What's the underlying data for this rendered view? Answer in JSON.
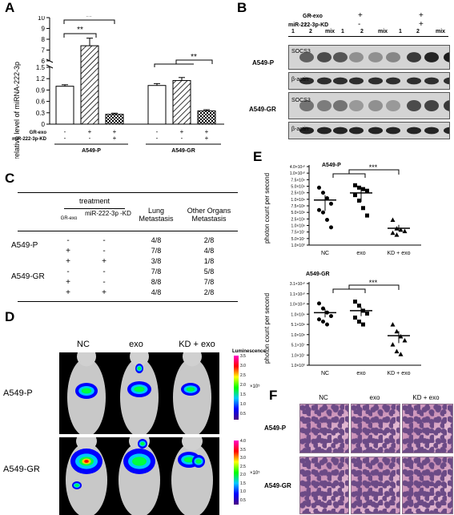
{
  "panels": {
    "A": "A",
    "B": "B",
    "C": "C",
    "D": "D",
    "E": "E",
    "F": "F"
  },
  "panelA": {
    "ylabel": "relative level of miRNA-222-3p",
    "yticks_upper": [
      "10",
      "9",
      "8",
      "7",
      "6"
    ],
    "yticks_lower": [
      "1.5",
      "1.2",
      "0.9",
      "0.6",
      "0.3",
      "0"
    ],
    "row_labels": [
      "GR-exo",
      "miR-222-3p-KD"
    ],
    "signs": {
      "A549-P": [
        [
          "-",
          "+",
          "+"
        ],
        [
          "-",
          "-",
          "+"
        ]
      ],
      "A549-GR": [
        [
          "-",
          "+",
          "+"
        ],
        [
          "-",
          "-",
          "+"
        ]
      ]
    },
    "groups": [
      "A549-P",
      "A549-GR"
    ],
    "sig": [
      "**",
      "**",
      "**"
    ]
  },
  "chart_data": [
    {
      "type": "bar",
      "title": "",
      "ylabel": "relative level of miRNA-222-3p",
      "groups": [
        "A549-P",
        "A549-GR"
      ],
      "categories": [
        "GR-exo - / miR-222-3p-KD -",
        "GR-exo + / miR-222-3p-KD -",
        "GR-exo + / miR-222-3p-KD +"
      ],
      "series": [
        {
          "name": "A549-P",
          "values": [
            1.0,
            7.4,
            0.26
          ]
        },
        {
          "name": "A549-GR",
          "values": [
            1.02,
            1.15,
            0.35
          ]
        }
      ],
      "ylim": [
        0,
        10
      ],
      "axis_break": [
        1.5,
        6
      ]
    },
    {
      "type": "scatter",
      "title": "A549-P",
      "ylabel": "photon count per second",
      "categories": [
        "NC",
        "exo",
        "KD + exo"
      ],
      "y_scale": "log",
      "ytick_labels": [
        "1.0×10⁸",
        "5.0×10⁷",
        "7.5×10⁷",
        "1.0×10⁸",
        "2.5×10⁸",
        "5.0×10⁸",
        "7.5×10⁸",
        "1.0×10⁹",
        "2.5×10⁹",
        "5.0×10⁹",
        "7.5×10⁹",
        "1.0×10¹⁰",
        "4.0×10¹⁰"
      ],
      "series": [
        {
          "name": "NC",
          "values": [
            4000000000.0,
            2500000000.0,
            1500000000.0,
            900000000.0,
            500000000.0,
            400000000.0,
            200000000.0,
            100000000.0
          ]
        },
        {
          "name": "exo",
          "values": [
            5000000000.0,
            4000000000.0,
            3500000000.0,
            3000000000.0,
            2000000000.0,
            1200000000.0,
            600000000.0,
            300000000.0
          ]
        },
        {
          "name": "KD + exo",
          "values": [
            200000000.0,
            90000000.0,
            80000000.0,
            70000000.0,
            60000000.0,
            50000000.0
          ]
        }
      ]
    },
    {
      "type": "scatter",
      "title": "A549-GR",
      "ylabel": "photon count per second",
      "categories": [
        "NC",
        "exo",
        "KD + exo"
      ],
      "y_scale": "log",
      "series": [
        {
          "name": "NC",
          "values": [
            2500000000.0,
            1500000000.0,
            1000000000.0,
            700000000.0,
            500000000.0,
            400000000.0,
            300000000.0
          ]
        },
        {
          "name": "exo",
          "values": [
            3000000000.0,
            2000000000.0,
            1200000000.0,
            900000000.0,
            600000000.0,
            400000000.0,
            300000000.0
          ]
        },
        {
          "name": "KD + exo",
          "values": [
            300000000.0,
            150000000.0,
            90000000.0,
            60000000.0,
            40000000.0,
            20000000.0,
            15000000.0
          ]
        }
      ]
    }
  ],
  "panelB": {
    "header_labels": [
      "GR-exo",
      "miR-222-3p-KD"
    ],
    "header_signs": [
      [
        "-",
        "+",
        "+"
      ],
      [
        "-",
        "-",
        "+"
      ]
    ],
    "lane_labels": [
      "1",
      "2",
      "mix",
      "1",
      "2",
      "mix",
      "1",
      "2",
      "mix"
    ],
    "cell_lines": [
      "A549-P",
      "A549-GR"
    ],
    "bands": [
      "SOCS3",
      "β-actin",
      "SOCS3",
      "β-actin"
    ]
  },
  "panelC": {
    "head_treatment": "treatment",
    "head_grexo": "GR-exo",
    "head_kd": "miR-222-3p -KD",
    "head_lung": "Lung Metastasis",
    "head_other": "Other Organs Metastasis",
    "rows": [
      {
        "group": "A549-P",
        "grexo": "-",
        "kd": "-",
        "lung": "4/8",
        "other": "2/8"
      },
      {
        "group": "",
        "grexo": "+",
        "kd": "-",
        "lung": "7/8",
        "other": "4/8"
      },
      {
        "group": "",
        "grexo": "+",
        "kd": "+",
        "lung": "3/8",
        "other": "1/8"
      },
      {
        "group": "A549-GR",
        "grexo": "-",
        "kd": "-",
        "lung": "7/8",
        "other": "5/8"
      },
      {
        "group": "",
        "grexo": "+",
        "kd": "-",
        "lung": "8/8",
        "other": "7/8"
      },
      {
        "group": "",
        "grexo": "+",
        "kd": "+",
        "lung": "4/8",
        "other": "2/8"
      }
    ]
  },
  "panelD": {
    "columns": [
      "NC",
      "exo",
      "KD + exo"
    ],
    "rows": [
      "A549-P",
      "A549-GR"
    ],
    "scale_title": "Luminescence",
    "scale1_ticks": [
      "3.5",
      "3.0",
      "2.5",
      "2.0",
      "1.5",
      "1.0",
      "0.5"
    ],
    "scale1_unit": "×10⁵",
    "scale2_ticks": [
      "4.0",
      "3.5",
      "3.0",
      "2.5",
      "2.0",
      "1.5",
      "1.0",
      "0.5"
    ],
    "scale2_unit": "×10⁵"
  },
  "panelE": {
    "title1": "A549-P",
    "title2": "A549-GR",
    "ylabel": "photon count per second",
    "ticks1": [
      "4.0×10¹⁰",
      "1.0×10¹⁰",
      "7.5×10⁹",
      "5.0×10⁹",
      "2.5×10⁹",
      "1.0×10⁹",
      "7.5×10⁸",
      "5.0×10⁸",
      "2.5×10⁸",
      "1.0×10⁸",
      "7.5×10⁷",
      "5.0×10⁷",
      "1.0×10⁰"
    ],
    "ticks2": [
      "3.1×10¹⁰",
      "1.1×10¹⁰",
      "1.0×10¹⁰",
      "1.0×10⁹",
      "5.1×10⁸",
      "1.0×10⁸",
      "5.1×10⁷",
      "1.0×10⁷",
      "1.0×10⁰"
    ],
    "xlabels": [
      "NC",
      "exo",
      "KD + exo"
    ],
    "sig": [
      "***",
      "***"
    ]
  },
  "panelF": {
    "columns": [
      "NC",
      "exo",
      "KD + exo"
    ],
    "rows": [
      "A549-P",
      "A549-GR"
    ]
  }
}
